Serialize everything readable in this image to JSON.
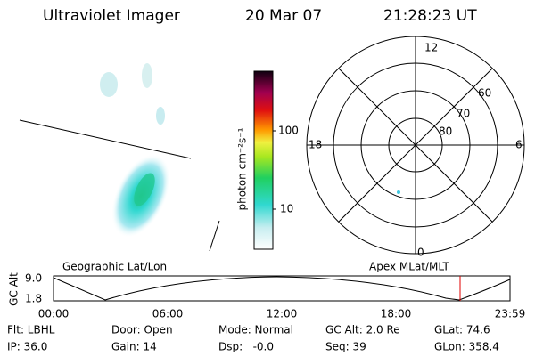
{
  "header": {
    "title": "Ultraviolet Imager",
    "date": "20 Mar 07",
    "time": "21:28:23 UT"
  },
  "colorbar": {
    "label": "photon cm⁻²s⁻¹",
    "ticks": [
      "100",
      "10"
    ]
  },
  "polar": {
    "mlt_labels": [
      "12",
      "6",
      "0",
      "18"
    ],
    "lat_labels": [
      "60",
      "70",
      "80"
    ]
  },
  "timeline": {
    "left_label": "Geographic Lat/Lon",
    "right_label": "Apex MLat/MLT",
    "y_label": "GC Alt",
    "y_ticks": [
      "9.0",
      "1.8"
    ],
    "x_ticks": [
      "00:00",
      "06:00",
      "12:00",
      "18:00",
      "23:59"
    ]
  },
  "status": {
    "rows": [
      [
        "Flt: LBHL",
        "Door: Open",
        "Mode: Normal",
        "GC Alt: 2.0 Re",
        "GLat: 74.6"
      ],
      [
        "IP: 36.0",
        "Gain: 14",
        "Dsp:   -0.0",
        "Seq: 39",
        "GLon: 358.4"
      ]
    ]
  }
}
